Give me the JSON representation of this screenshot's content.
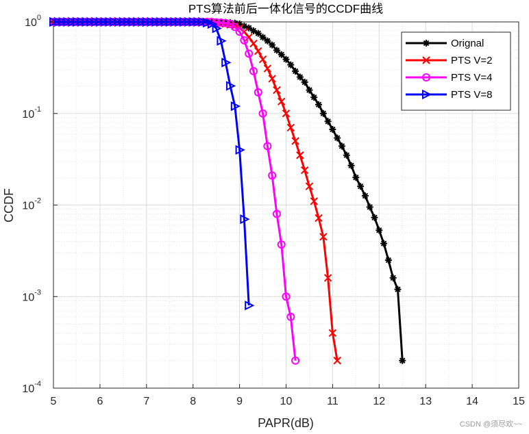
{
  "chart_data": {
    "type": "line",
    "title": "PTS算法前后一体化信号的CCDF曲线",
    "xlabel": "PAPR(dB)",
    "ylabel": "CCDF",
    "watermark": "CSDN @须尽欢~~",
    "xlim": [
      5,
      15
    ],
    "xticks": [
      5,
      6,
      7,
      8,
      9,
      10,
      11,
      12,
      13,
      14,
      15
    ],
    "ylim": [
      0.0001,
      1
    ],
    "yscale": "log",
    "yticks": [
      {
        "value": 0.0001,
        "label": "10",
        "exponent": "-4"
      },
      {
        "value": 0.001,
        "label": "10",
        "exponent": "-3"
      },
      {
        "value": 0.01,
        "label": "10",
        "exponent": "-2"
      },
      {
        "value": 0.1,
        "label": "10",
        "exponent": "-1"
      },
      {
        "value": 1,
        "label": "10",
        "exponent": "0"
      }
    ],
    "grid": true,
    "minor_grid": true,
    "legend": "upper right",
    "series": [
      {
        "name": "Orignal",
        "color": "#000000",
        "marker": "asterisk",
        "x": [
          5,
          5.1,
          5.2,
          5.3,
          5.4,
          5.5,
          5.6,
          5.7,
          5.8,
          5.9,
          6,
          6.1,
          6.2,
          6.3,
          6.4,
          6.5,
          6.6,
          6.7,
          6.8,
          6.9,
          7,
          7.1,
          7.2,
          7.3,
          7.4,
          7.5,
          7.6,
          7.7,
          7.8,
          7.9,
          8,
          8.1,
          8.2,
          8.3,
          8.4,
          8.5,
          8.6,
          8.7,
          8.8,
          8.9,
          9,
          9.1,
          9.2,
          9.3,
          9.4,
          9.5,
          9.6,
          9.7,
          9.8,
          9.9,
          10,
          10.1,
          10.2,
          10.3,
          10.4,
          10.5,
          10.6,
          10.7,
          10.8,
          10.9,
          11,
          11.1,
          11.2,
          11.3,
          11.4,
          11.5,
          11.6,
          11.7,
          11.8,
          11.9,
          12,
          12.1,
          12.2,
          12.3,
          12.4,
          12.5
        ],
        "values": [
          1,
          1,
          1,
          1,
          1,
          1,
          1,
          1,
          1,
          1,
          1,
          1,
          1,
          1,
          1,
          1,
          1,
          1,
          1,
          1,
          1,
          1,
          1,
          1,
          1,
          1,
          1,
          1,
          1,
          1,
          1,
          1,
          1,
          1,
          1,
          1,
          1,
          0.99,
          0.98,
          0.97,
          0.95,
          0.9,
          0.86,
          0.8,
          0.75,
          0.68,
          0.62,
          0.56,
          0.49,
          0.44,
          0.39,
          0.34,
          0.29,
          0.25,
          0.22,
          0.18,
          0.15,
          0.125,
          0.1,
          0.082,
          0.067,
          0.054,
          0.044,
          0.035,
          0.027,
          0.02,
          0.016,
          0.0126,
          0.0095,
          0.0073,
          0.0053,
          0.0038,
          0.0025,
          0.0016,
          0.0012,
          0.0002
        ]
      },
      {
        "name": "PTS V=2",
        "color": "#ff0000",
        "marker": "x",
        "x": [
          5,
          5.1,
          5.2,
          5.3,
          5.4,
          5.5,
          5.6,
          5.7,
          5.8,
          5.9,
          6,
          6.1,
          6.2,
          6.3,
          6.4,
          6.5,
          6.6,
          6.7,
          6.8,
          6.9,
          7,
          7.1,
          7.2,
          7.3,
          7.4,
          7.5,
          7.6,
          7.7,
          7.8,
          7.9,
          8,
          8.1,
          8.2,
          8.3,
          8.4,
          8.5,
          8.6,
          8.7,
          8.8,
          8.9,
          9,
          9.1,
          9.2,
          9.3,
          9.4,
          9.5,
          9.6,
          9.7,
          9.8,
          9.9,
          10,
          10.1,
          10.2,
          10.3,
          10.4,
          10.5,
          10.6,
          10.7,
          10.8,
          10.9,
          11,
          11.1
        ],
        "values": [
          1,
          1,
          1,
          1,
          1,
          1,
          1,
          1,
          1,
          1,
          1,
          1,
          1,
          1,
          1,
          1,
          1,
          1,
          1,
          1,
          1,
          1,
          1,
          1,
          1,
          1,
          1,
          1,
          1,
          1,
          1,
          1,
          1,
          1,
          0.99,
          0.98,
          0.97,
          0.95,
          0.93,
          0.9,
          0.86,
          0.78,
          0.68,
          0.58,
          0.48,
          0.39,
          0.31,
          0.24,
          0.18,
          0.135,
          0.1,
          0.07,
          0.05,
          0.035,
          0.024,
          0.016,
          0.011,
          0.0072,
          0.0045,
          0.0016,
          0.0004,
          0.0002
        ]
      },
      {
        "name": "PTS V=4",
        "color": "#ff00ff",
        "marker": "circle",
        "x": [
          5,
          5.1,
          5.2,
          5.3,
          5.4,
          5.5,
          5.6,
          5.7,
          5.8,
          5.9,
          6,
          6.1,
          6.2,
          6.3,
          6.4,
          6.5,
          6.6,
          6.7,
          6.8,
          6.9,
          7,
          7.1,
          7.2,
          7.3,
          7.4,
          7.5,
          7.6,
          7.7,
          7.8,
          7.9,
          8,
          8.1,
          8.2,
          8.3,
          8.4,
          8.5,
          8.6,
          8.7,
          8.8,
          8.9,
          9,
          9.1,
          9.2,
          9.3,
          9.4,
          9.5,
          9.6,
          9.7,
          9.8,
          9.9,
          10,
          10.1,
          10.2
        ],
        "values": [
          1,
          1,
          1,
          1,
          1,
          1,
          1,
          1,
          1,
          1,
          1,
          1,
          1,
          1,
          1,
          1,
          1,
          1,
          1,
          1,
          1,
          1,
          1,
          1,
          1,
          1,
          1,
          1,
          1,
          1,
          1,
          1,
          1,
          1,
          1,
          0.99,
          0.98,
          0.97,
          0.95,
          0.88,
          0.78,
          0.63,
          0.45,
          0.29,
          0.17,
          0.1,
          0.044,
          0.021,
          0.008,
          0.0037,
          0.001,
          0.0006,
          0.0002
        ]
      },
      {
        "name": "PTS V=8",
        "color": "#0000ff",
        "marker": "triangle-right",
        "x": [
          5,
          5.1,
          5.2,
          5.3,
          5.4,
          5.5,
          5.6,
          5.7,
          5.8,
          5.9,
          6,
          6.1,
          6.2,
          6.3,
          6.4,
          6.5,
          6.6,
          6.7,
          6.8,
          6.9,
          7,
          7.1,
          7.2,
          7.3,
          7.4,
          7.5,
          7.6,
          7.7,
          7.8,
          7.9,
          8,
          8.1,
          8.2,
          8.3,
          8.4,
          8.5,
          8.6,
          8.7,
          8.8,
          8.9,
          9,
          9.1,
          9.2
        ],
        "values": [
          1,
          1,
          1,
          1,
          1,
          1,
          1,
          1,
          1,
          1,
          1,
          1,
          1,
          1,
          1,
          1,
          1,
          1,
          1,
          1,
          1,
          1,
          1,
          1,
          1,
          1,
          1,
          1,
          1,
          1,
          1,
          1,
          1,
          0.98,
          0.95,
          0.85,
          0.62,
          0.36,
          0.2,
          0.12,
          0.04,
          0.007,
          0.0008
        ]
      }
    ]
  }
}
